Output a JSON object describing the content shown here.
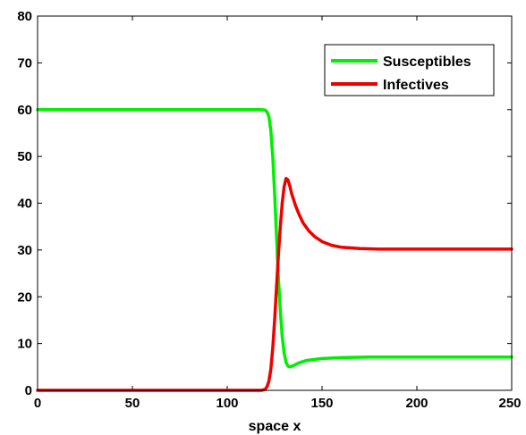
{
  "chart_data": {
    "type": "line",
    "title": "",
    "xlabel": "space x",
    "ylabel": "",
    "xlim": [
      0,
      250
    ],
    "ylim": [
      0,
      80
    ],
    "xticks": [
      0,
      50,
      100,
      150,
      200,
      250
    ],
    "yticks": [
      0,
      10,
      20,
      30,
      40,
      50,
      60,
      70,
      80
    ],
    "grid": false,
    "legend_position": "top-right",
    "series": [
      {
        "name": "Susceptibles",
        "color": "#00ee00",
        "x": [
          0,
          50,
          100,
          118,
          120,
          121,
          122,
          123,
          124,
          125,
          126,
          127,
          128,
          129,
          130,
          131,
          132,
          133,
          135,
          138,
          142,
          150,
          160,
          175,
          200,
          250
        ],
        "y": [
          60,
          60,
          60,
          60,
          59.9,
          59.5,
          58.5,
          55.5,
          50,
          42,
          33,
          24,
          17,
          11.5,
          8,
          6,
          5.2,
          5,
          5.3,
          5.9,
          6.4,
          6.8,
          7,
          7.1,
          7.1,
          7.1
        ]
      },
      {
        "name": "Infectives",
        "color": "#ee0000",
        "x": [
          0,
          50,
          100,
          118,
          120,
          121,
          122,
          123,
          124,
          125,
          126,
          127,
          128,
          129,
          130,
          131,
          132,
          133,
          134,
          136,
          138,
          140,
          143,
          146,
          150,
          155,
          160,
          170,
          180,
          200,
          250
        ],
        "y": [
          0,
          0,
          0,
          0,
          0.2,
          0.8,
          2,
          4.5,
          9,
          15,
          22,
          29,
          35,
          40,
          43.5,
          45.3,
          45,
          43.7,
          42,
          39.5,
          37.5,
          35.8,
          34.1,
          32.9,
          31.8,
          31,
          30.6,
          30.3,
          30.2,
          30.2,
          30.2
        ]
      }
    ]
  }
}
